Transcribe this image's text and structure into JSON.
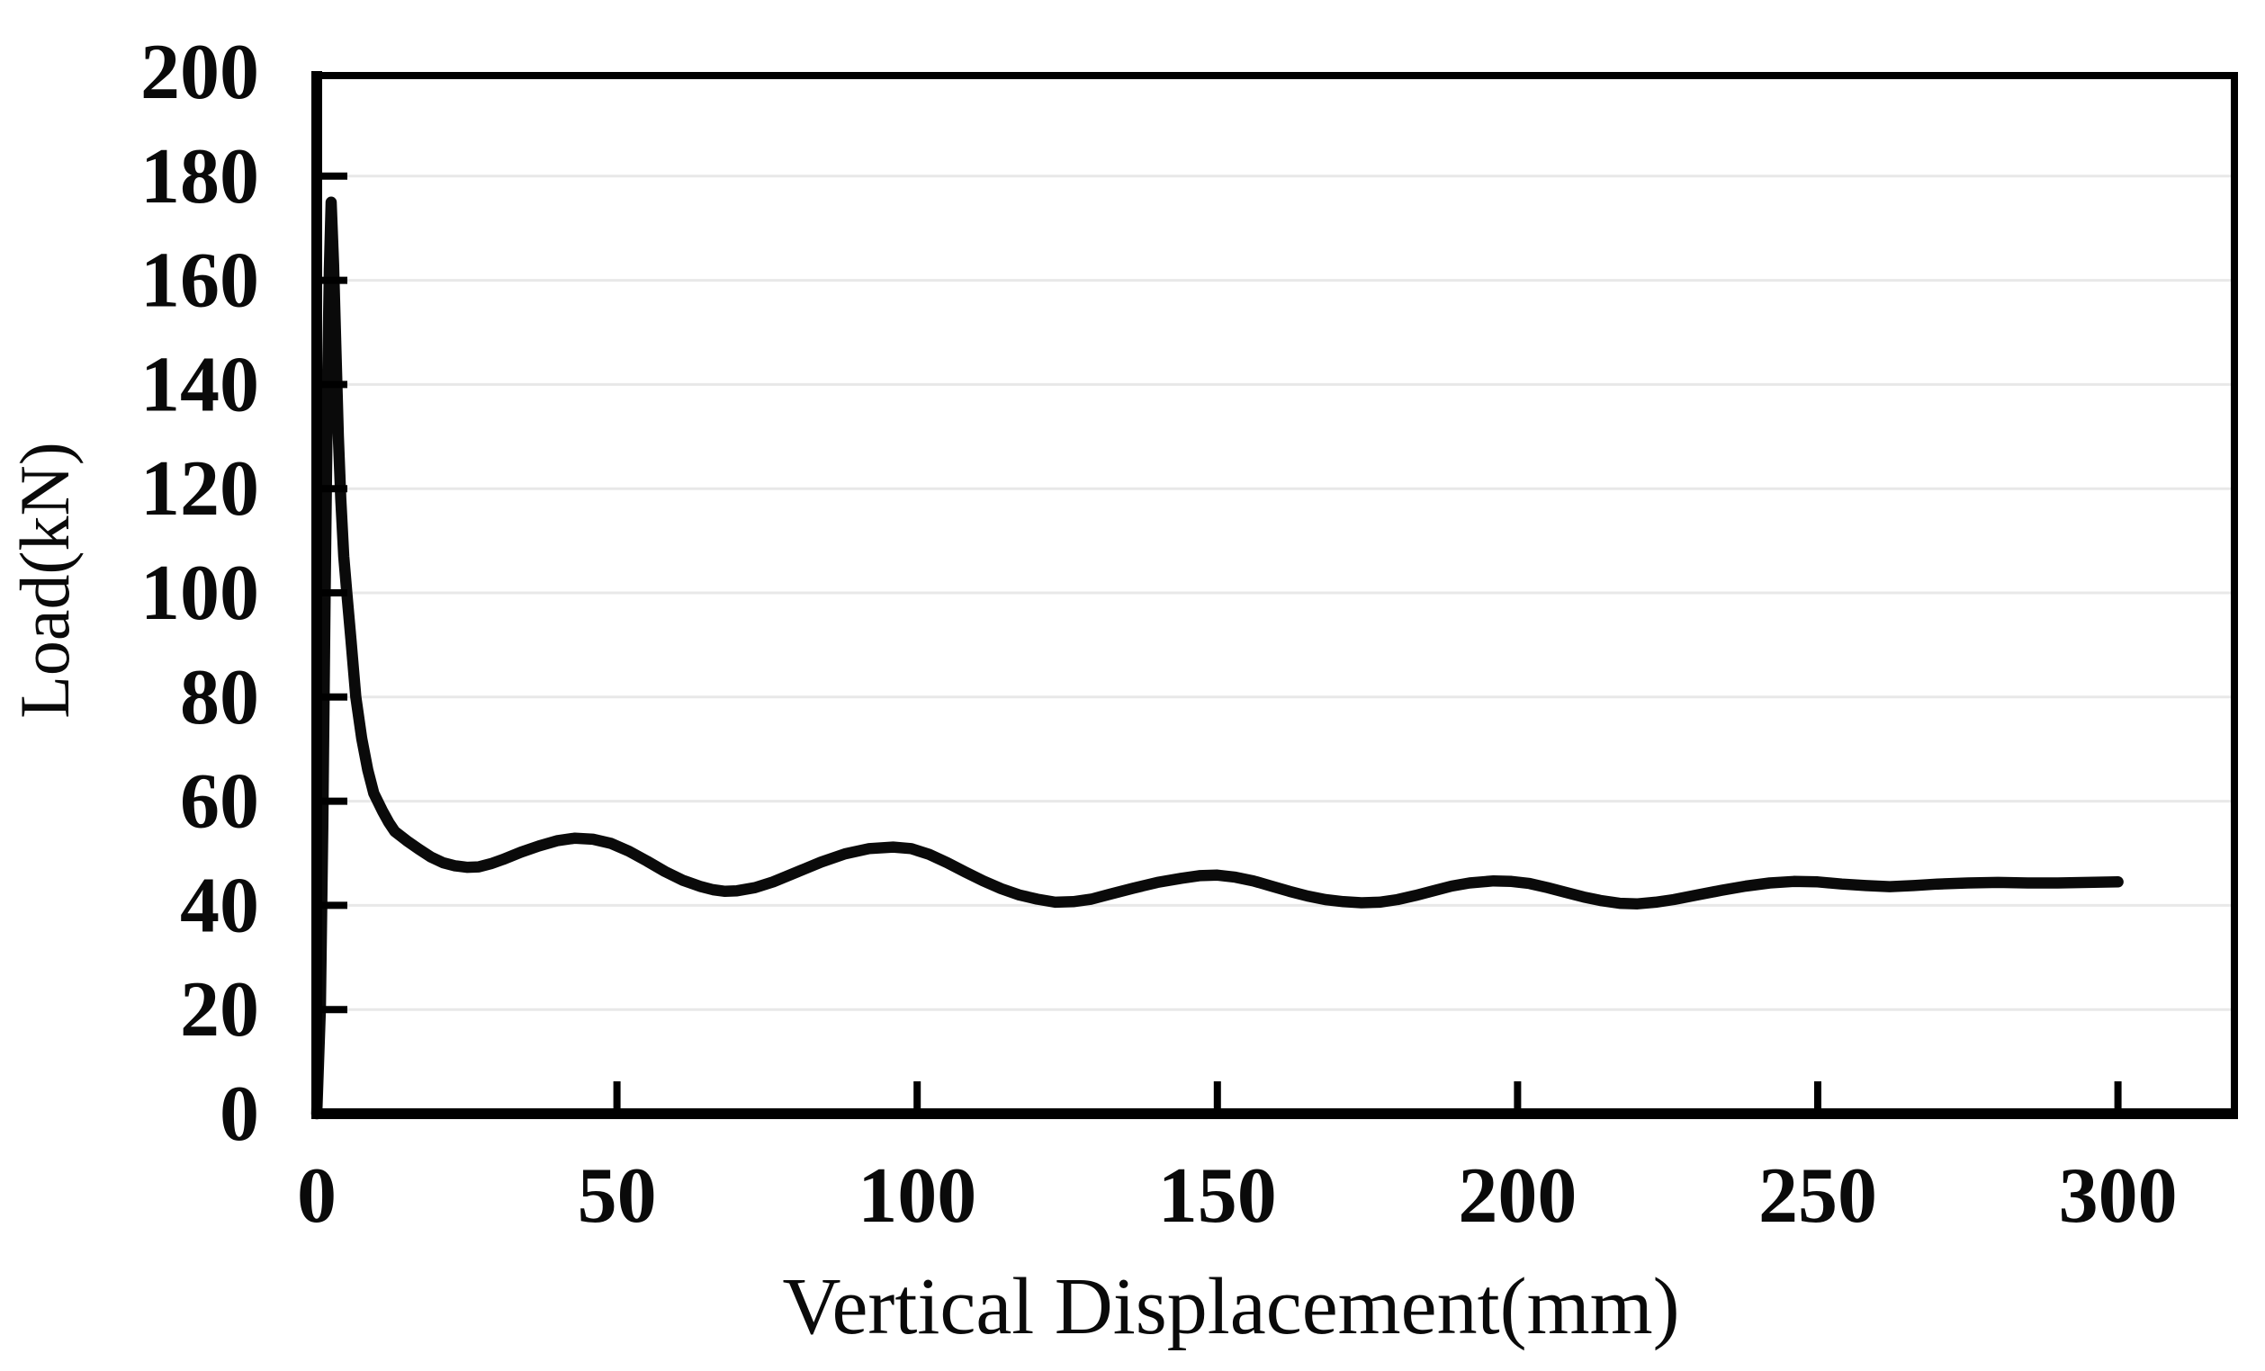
{
  "figure": {
    "background": "#ffffff"
  },
  "chart_data": {
    "type": "line",
    "title": "",
    "xlabel": "Vertical Displacement(mm)",
    "ylabel": "Load(kN)",
    "xlim": [
      0,
      320
    ],
    "ylim": [
      0,
      200
    ],
    "x_ticks": [
      0,
      50,
      100,
      150,
      200,
      250,
      300
    ],
    "y_ticks": [
      0,
      20,
      40,
      60,
      80,
      100,
      120,
      140,
      160,
      180,
      200
    ],
    "grid": "horizontal-light",
    "legend": "none",
    "colors": {
      "curve": "#0a0a0a",
      "axis": "#000000",
      "gridline": "#e8e8e8",
      "text": "#0a0a0a"
    },
    "features": {
      "initial_peak": {
        "x": 2.4,
        "y": 175
      },
      "oscillation_peaks": [
        [
          43,
          52.9
        ],
        [
          96,
          51.2
        ],
        [
          150,
          45.8
        ],
        [
          196,
          44.7
        ],
        [
          246,
          44.6
        ]
      ],
      "oscillation_troughs": [
        [
          24,
          47.3
        ],
        [
          68,
          42.7
        ],
        [
          123,
          40.6
        ],
        [
          174,
          40.5
        ],
        [
          220,
          40.3
        ],
        [
          262,
          43.6
        ]
      ],
      "end_value": {
        "x": 300,
        "y": 44.5
      }
    },
    "series": [
      {
        "name": "load-vs-vertical-displacement",
        "color": "#0a0a0a",
        "points": [
          [
            0,
            0
          ],
          [
            0.6,
            20
          ],
          [
            1,
            55
          ],
          [
            1.4,
            100
          ],
          [
            1.8,
            140
          ],
          [
            2.1,
            162
          ],
          [
            2.4,
            175
          ],
          [
            2.8,
            163
          ],
          [
            3.2,
            146
          ],
          [
            3.6,
            130
          ],
          [
            4,
            118
          ],
          [
            4.5,
            107
          ],
          [
            5,
            100
          ],
          [
            5.7,
            91
          ],
          [
            6.5,
            80
          ],
          [
            7.5,
            72
          ],
          [
            8.5,
            66
          ],
          [
            9.5,
            61.5
          ],
          [
            11,
            58
          ],
          [
            12,
            55.9
          ],
          [
            13,
            54.2
          ],
          [
            15,
            52.4
          ],
          [
            17,
            50.8
          ],
          [
            19,
            49.3
          ],
          [
            21,
            48.2
          ],
          [
            23,
            47.6
          ],
          [
            25,
            47.3
          ],
          [
            27,
            47.4
          ],
          [
            29,
            48
          ],
          [
            31,
            48.8
          ],
          [
            34,
            50.2
          ],
          [
            37,
            51.4
          ],
          [
            40,
            52.4
          ],
          [
            43,
            52.9
          ],
          [
            46,
            52.7
          ],
          [
            49,
            51.9
          ],
          [
            52,
            50.4
          ],
          [
            55,
            48.5
          ],
          [
            58,
            46.5
          ],
          [
            61,
            44.8
          ],
          [
            64,
            43.6
          ],
          [
            66,
            43
          ],
          [
            68,
            42.7
          ],
          [
            70,
            42.8
          ],
          [
            73,
            43.4
          ],
          [
            76,
            44.5
          ],
          [
            80,
            46.4
          ],
          [
            84,
            48.3
          ],
          [
            88,
            49.9
          ],
          [
            92,
            50.9
          ],
          [
            96,
            51.2
          ],
          [
            99,
            50.9
          ],
          [
            102,
            49.8
          ],
          [
            105,
            48.2
          ],
          [
            108,
            46.4
          ],
          [
            111,
            44.7
          ],
          [
            114,
            43.2
          ],
          [
            117,
            42
          ],
          [
            120,
            41.2
          ],
          [
            123,
            40.6
          ],
          [
            126,
            40.7
          ],
          [
            129,
            41.2
          ],
          [
            132,
            42.1
          ],
          [
            136,
            43.3
          ],
          [
            140,
            44.4
          ],
          [
            144,
            45.2
          ],
          [
            147,
            45.7
          ],
          [
            150,
            45.8
          ],
          [
            153,
            45.4
          ],
          [
            156,
            44.7
          ],
          [
            159,
            43.7
          ],
          [
            162,
            42.7
          ],
          [
            165,
            41.8
          ],
          [
            168,
            41.1
          ],
          [
            171,
            40.7
          ],
          [
            174,
            40.5
          ],
          [
            177,
            40.6
          ],
          [
            180,
            41.1
          ],
          [
            183,
            41.9
          ],
          [
            186,
            42.8
          ],
          [
            189,
            43.7
          ],
          [
            192,
            44.3
          ],
          [
            196,
            44.7
          ],
          [
            199,
            44.6
          ],
          [
            202,
            44.2
          ],
          [
            205,
            43.4
          ],
          [
            208,
            42.5
          ],
          [
            211,
            41.6
          ],
          [
            214,
            40.9
          ],
          [
            217,
            40.4
          ],
          [
            220,
            40.3
          ],
          [
            223,
            40.6
          ],
          [
            226,
            41.1
          ],
          [
            230,
            42
          ],
          [
            234,
            42.9
          ],
          [
            238,
            43.7
          ],
          [
            242,
            44.3
          ],
          [
            246,
            44.6
          ],
          [
            250,
            44.5
          ],
          [
            254,
            44.1
          ],
          [
            258,
            43.8
          ],
          [
            262,
            43.6
          ],
          [
            266,
            43.8
          ],
          [
            270,
            44.1
          ],
          [
            275,
            44.3
          ],
          [
            280,
            44.4
          ],
          [
            285,
            44.3
          ],
          [
            290,
            44.3
          ],
          [
            295,
            44.4
          ],
          [
            300,
            44.5
          ]
        ]
      }
    ]
  }
}
